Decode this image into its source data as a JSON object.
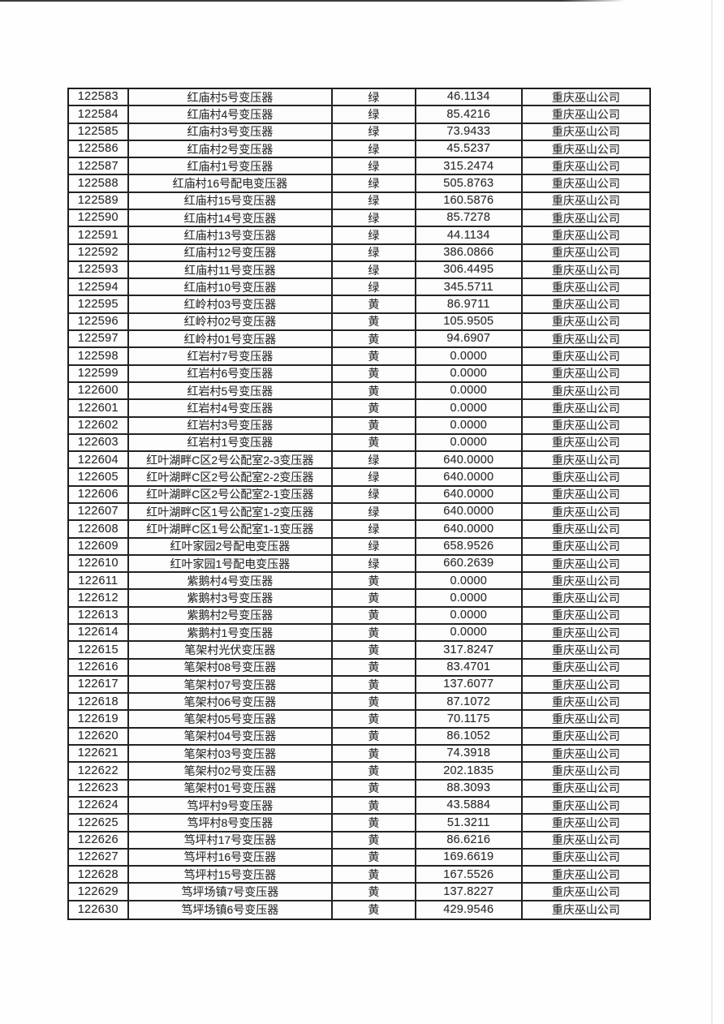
{
  "table": {
    "column_keys": [
      "id",
      "name",
      "status",
      "value",
      "company"
    ],
    "rows": [
      [
        "122583",
        "红庙村5号变压器",
        "绿",
        "46.1134",
        "重庆巫山公司"
      ],
      [
        "122584",
        "红庙村4号变压器",
        "绿",
        "85.4216",
        "重庆巫山公司"
      ],
      [
        "122585",
        "红庙村3号变压器",
        "绿",
        "73.9433",
        "重庆巫山公司"
      ],
      [
        "122586",
        "红庙村2号变压器",
        "绿",
        "45.5237",
        "重庆巫山公司"
      ],
      [
        "122587",
        "红庙村1号变压器",
        "绿",
        "315.2474",
        "重庆巫山公司"
      ],
      [
        "122588",
        "红庙村16号配电变压器",
        "绿",
        "505.8763",
        "重庆巫山公司"
      ],
      [
        "122589",
        "红庙村15号变压器",
        "绿",
        "160.5876",
        "重庆巫山公司"
      ],
      [
        "122590",
        "红庙村14号变压器",
        "绿",
        "85.7278",
        "重庆巫山公司"
      ],
      [
        "122591",
        "红庙村13号变压器",
        "绿",
        "44.1134",
        "重庆巫山公司"
      ],
      [
        "122592",
        "红庙村12号变压器",
        "绿",
        "386.0866",
        "重庆巫山公司"
      ],
      [
        "122593",
        "红庙村11号变压器",
        "绿",
        "306.4495",
        "重庆巫山公司"
      ],
      [
        "122594",
        "红庙村10号变压器",
        "绿",
        "345.5711",
        "重庆巫山公司"
      ],
      [
        "122595",
        "红岭村03号变压器",
        "黄",
        "86.9711",
        "重庆巫山公司"
      ],
      [
        "122596",
        "红岭村02号变压器",
        "黄",
        "105.9505",
        "重庆巫山公司"
      ],
      [
        "122597",
        "红岭村01号变压器",
        "黄",
        "94.6907",
        "重庆巫山公司"
      ],
      [
        "122598",
        "红岩村7号变压器",
        "黄",
        "0.0000",
        "重庆巫山公司"
      ],
      [
        "122599",
        "红岩村6号变压器",
        "黄",
        "0.0000",
        "重庆巫山公司"
      ],
      [
        "122600",
        "红岩村5号变压器",
        "黄",
        "0.0000",
        "重庆巫山公司"
      ],
      [
        "122601",
        "红岩村4号变压器",
        "黄",
        "0.0000",
        "重庆巫山公司"
      ],
      [
        "122602",
        "红岩村3号变压器",
        "黄",
        "0.0000",
        "重庆巫山公司"
      ],
      [
        "122603",
        "红岩村1号变压器",
        "黄",
        "0.0000",
        "重庆巫山公司"
      ],
      [
        "122604",
        "红叶湖畔C区2号公配室2-3变压器",
        "绿",
        "640.0000",
        "重庆巫山公司"
      ],
      [
        "122605",
        "红叶湖畔C区2号公配室2-2变压器",
        "绿",
        "640.0000",
        "重庆巫山公司"
      ],
      [
        "122606",
        "红叶湖畔C区2号公配室2-1变压器",
        "绿",
        "640.0000",
        "重庆巫山公司"
      ],
      [
        "122607",
        "红叶湖畔C区1号公配室1-2变压器",
        "绿",
        "640.0000",
        "重庆巫山公司"
      ],
      [
        "122608",
        "红叶湖畔C区1号公配室1-1变压器",
        "绿",
        "640.0000",
        "重庆巫山公司"
      ],
      [
        "122609",
        "红叶家园2号配电变压器",
        "绿",
        "658.9526",
        "重庆巫山公司"
      ],
      [
        "122610",
        "红叶家园1号配电变压器",
        "绿",
        "660.2639",
        "重庆巫山公司"
      ],
      [
        "122611",
        "紫鹅村4号变压器",
        "黄",
        "0.0000",
        "重庆巫山公司"
      ],
      [
        "122612",
        "紫鹅村3号变压器",
        "黄",
        "0.0000",
        "重庆巫山公司"
      ],
      [
        "122613",
        "紫鹅村2号变压器",
        "黄",
        "0.0000",
        "重庆巫山公司"
      ],
      [
        "122614",
        "紫鹅村1号变压器",
        "黄",
        "0.0000",
        "重庆巫山公司"
      ],
      [
        "122615",
        "笔架村光伏变压器",
        "黄",
        "317.8247",
        "重庆巫山公司"
      ],
      [
        "122616",
        "笔架村08号变压器",
        "黄",
        "83.4701",
        "重庆巫山公司"
      ],
      [
        "122617",
        "笔架村07号变压器",
        "黄",
        "137.6077",
        "重庆巫山公司"
      ],
      [
        "122618",
        "笔架村06号变压器",
        "黄",
        "87.1072",
        "重庆巫山公司"
      ],
      [
        "122619",
        "笔架村05号变压器",
        "黄",
        "70.1175",
        "重庆巫山公司"
      ],
      [
        "122620",
        "笔架村04号变压器",
        "黄",
        "86.1052",
        "重庆巫山公司"
      ],
      [
        "122621",
        "笔架村03号变压器",
        "黄",
        "74.3918",
        "重庆巫山公司"
      ],
      [
        "122622",
        "笔架村02号变压器",
        "黄",
        "202.1835",
        "重庆巫山公司"
      ],
      [
        "122623",
        "笔架村01号变压器",
        "黄",
        "88.3093",
        "重庆巫山公司"
      ],
      [
        "122624",
        "笃坪村9号变压器",
        "黄",
        "43.5884",
        "重庆巫山公司"
      ],
      [
        "122625",
        "笃坪村8号变压器",
        "黄",
        "51.3211",
        "重庆巫山公司"
      ],
      [
        "122626",
        "笃坪村17号变压器",
        "黄",
        "86.6216",
        "重庆巫山公司"
      ],
      [
        "122627",
        "笃坪村16号变压器",
        "黄",
        "169.6619",
        "重庆巫山公司"
      ],
      [
        "122628",
        "笃坪村15号变压器",
        "黄",
        "167.5526",
        "重庆巫山公司"
      ],
      [
        "122629",
        "笃坪场镇7号变压器",
        "黄",
        "137.8227",
        "重庆巫山公司"
      ],
      [
        "122630",
        "笃坪场镇6号变压器",
        "黄",
        "429.9546",
        "重庆巫山公司"
      ]
    ]
  }
}
